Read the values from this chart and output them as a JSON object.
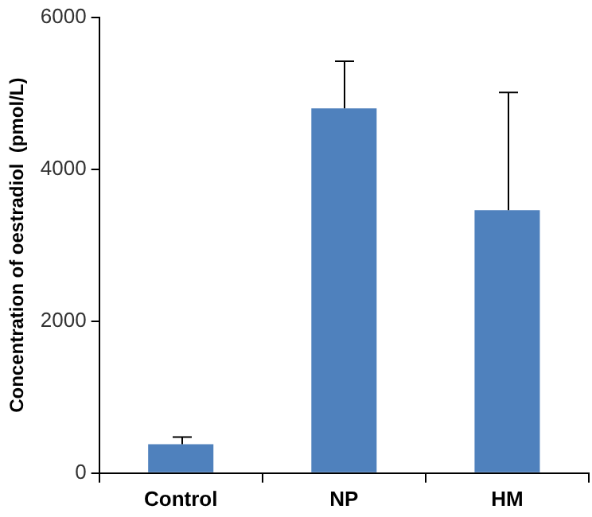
{
  "chart_data": {
    "type": "bar",
    "ylabel": "Concentration of oestradiol  (pmol/L)",
    "categories": [
      "Control",
      "NP",
      "HM"
    ],
    "values": [
      380,
      4800,
      3460
    ],
    "color": "#4f81bd",
    "errors": [
      [
        380,
        475
      ],
      [
        4800,
        5420
      ],
      [
        3460,
        5010
      ]
    ],
    "ylim": [
      0,
      6000
    ],
    "yticks": [
      0,
      2000,
      4000,
      6000
    ],
    "grid": false,
    "legend": false
  }
}
